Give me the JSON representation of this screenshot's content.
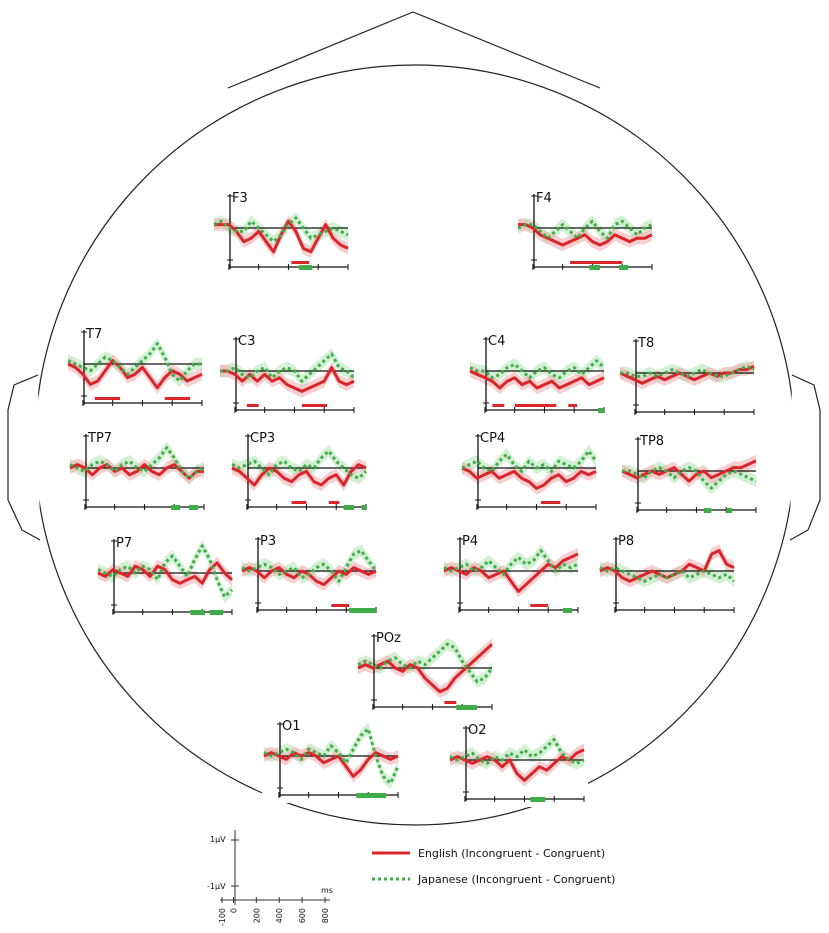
{
  "legend": {
    "english_label": "English (Incongruent - Congruent)",
    "japanese_label": "Japanese (Incongruent - Congruent)"
  },
  "scale_bar": {
    "y_top_label": "1µV",
    "y_bottom_label": "-1µV",
    "x_unit_label": "ms",
    "x_ticks": [
      "-100",
      "0",
      "200",
      "400",
      "600",
      "800"
    ]
  },
  "colors": {
    "english": "#d9262b",
    "english_band": "#f2a8ab",
    "japanese": "#3fae49",
    "japanese_band": "#aee3b2",
    "english_sig": "#d9262b",
    "japanese_sig": "#3fae49"
  },
  "chart_data": {
    "type": "line",
    "title": "",
    "xlabel": "ms",
    "ylabel": "µV",
    "xlim": [
      -100,
      800
    ],
    "ylim": [
      -1,
      1
    ],
    "x": [
      -100,
      -50,
      0,
      50,
      100,
      150,
      200,
      250,
      300,
      350,
      400,
      450,
      500,
      550,
      600,
      650,
      700,
      750,
      800
    ],
    "series_names": [
      "English (Incongruent - Congruent)",
      "Japanese (Incongruent - Congruent)"
    ],
    "electrodes": [
      {
        "name": "F3",
        "english": [
          0.1,
          0.1,
          0.1,
          -0.1,
          -0.4,
          -0.3,
          -0.1,
          -0.4,
          -0.7,
          -0.2,
          0.2,
          -0.1,
          -0.6,
          -0.7,
          -0.3,
          0.1,
          -0.3,
          -0.5,
          -0.6
        ],
        "japanese": [
          0.1,
          0.2,
          0.0,
          -0.1,
          -0.1,
          0.2,
          0.0,
          -0.2,
          -0.4,
          -0.2,
          0.1,
          0.3,
          0.0,
          -0.3,
          -0.2,
          -0.1,
          0.0,
          -0.1,
          -0.2
        ],
        "sig_english": [
          [
            420,
            540
          ]
        ],
        "sig_japanese": [
          [
            470,
            560
          ]
        ]
      },
      {
        "name": "F4",
        "english": [
          0.1,
          0.1,
          0.0,
          -0.2,
          -0.3,
          -0.4,
          -0.5,
          -0.4,
          -0.3,
          -0.2,
          -0.4,
          -0.5,
          -0.4,
          -0.2,
          -0.3,
          -0.4,
          -0.3,
          -0.3,
          -0.2
        ],
        "japanese": [
          0.0,
          0.1,
          0.1,
          -0.1,
          -0.3,
          -0.1,
          0.1,
          -0.1,
          -0.3,
          0.0,
          0.2,
          -0.1,
          -0.3,
          0.1,
          0.2,
          0.0,
          -0.2,
          0.0,
          0.1
        ],
        "sig_english": [
          [
            250,
            600
          ]
        ],
        "sig_japanese": [
          [
            380,
            450
          ],
          [
            580,
            640
          ]
        ]
      },
      {
        "name": "T7",
        "english": [
          0.0,
          -0.1,
          -0.3,
          -0.6,
          -0.5,
          -0.2,
          0.1,
          -0.1,
          -0.4,
          -0.3,
          -0.1,
          -0.4,
          -0.7,
          -0.4,
          -0.2,
          -0.3,
          -0.5,
          -0.4,
          -0.3
        ],
        "japanese": [
          0.1,
          0.0,
          -0.1,
          -0.2,
          0.0,
          0.2,
          0.1,
          -0.1,
          -0.3,
          -0.1,
          0.1,
          0.3,
          0.6,
          0.2,
          -0.3,
          -0.5,
          -0.2,
          0.0,
          0.0
        ],
        "sig_english": [
          [
            80,
            250
          ],
          [
            550,
            720
          ]
        ],
        "sig_japanese": []
      },
      {
        "name": "C3",
        "english": [
          0.0,
          0.0,
          -0.1,
          -0.3,
          -0.1,
          -0.3,
          -0.1,
          -0.3,
          -0.2,
          -0.4,
          -0.5,
          -0.6,
          -0.5,
          -0.4,
          -0.3,
          0.1,
          -0.3,
          -0.4,
          -0.3
        ],
        "japanese": [
          0.0,
          0.0,
          0.1,
          -0.1,
          -0.2,
          0.0,
          0.1,
          -0.2,
          0.0,
          0.1,
          0.0,
          -0.3,
          -0.1,
          0.1,
          0.3,
          0.5,
          0.1,
          0.0,
          -0.2
        ],
        "sig_english": [
          [
            80,
            160
          ],
          [
            450,
            620
          ]
        ],
        "sig_japanese": []
      },
      {
        "name": "C4",
        "english": [
          0.0,
          -0.1,
          -0.2,
          -0.3,
          -0.5,
          -0.3,
          -0.2,
          -0.4,
          -0.3,
          -0.5,
          -0.4,
          -0.3,
          -0.5,
          -0.4,
          -0.3,
          -0.2,
          -0.4,
          -0.3,
          -0.2
        ],
        "japanese": [
          0.1,
          0.0,
          0.0,
          -0.2,
          -0.1,
          0.1,
          0.2,
          0.0,
          -0.2,
          0.0,
          0.1,
          -0.1,
          -0.2,
          0.0,
          0.1,
          -0.1,
          0.1,
          0.3,
          0.1
        ],
        "sig_english": [
          [
            50,
            130
          ],
          [
            200,
            480
          ],
          [
            560,
            620
          ]
        ],
        "sig_japanese": [
          [
            760,
            800
          ]
        ]
      },
      {
        "name": "T8",
        "english": [
          0.0,
          -0.1,
          -0.2,
          -0.3,
          -0.2,
          -0.1,
          -0.2,
          -0.1,
          0.0,
          -0.1,
          -0.2,
          -0.1,
          0.0,
          -0.1,
          0.0,
          0.0,
          0.1,
          0.1,
          0.2
        ],
        "japanese": [
          0.0,
          0.0,
          -0.1,
          -0.1,
          0.0,
          -0.1,
          0.0,
          0.1,
          0.0,
          -0.1,
          0.0,
          0.1,
          0.0,
          -0.1,
          -0.1,
          0.0,
          0.1,
          0.2,
          0.1
        ],
        "sig_english": [],
        "sig_japanese": []
      },
      {
        "name": "TP7",
        "english": [
          0.0,
          0.1,
          0.0,
          -0.2,
          0.0,
          0.1,
          -0.1,
          0.0,
          -0.2,
          -0.1,
          0.1,
          -0.1,
          -0.2,
          0.0,
          0.1,
          -0.1,
          -0.3,
          -0.1,
          -0.1
        ],
        "japanese": [
          0.1,
          0.0,
          -0.1,
          0.1,
          0.2,
          0.1,
          -0.1,
          0.1,
          0.2,
          0.0,
          -0.1,
          0.1,
          0.3,
          0.6,
          0.3,
          -0.1,
          -0.3,
          -0.1,
          0.0
        ],
        "sig_english": [],
        "sig_japanese": [
          [
            580,
            640
          ],
          [
            700,
            760
          ]
        ]
      },
      {
        "name": "CP3",
        "english": [
          0.0,
          -0.1,
          -0.3,
          -0.5,
          -0.2,
          0.0,
          -0.1,
          -0.3,
          -0.4,
          -0.2,
          -0.1,
          -0.4,
          -0.5,
          -0.3,
          -0.2,
          -0.5,
          -0.1,
          0.1,
          0.0
        ],
        "japanese": [
          0.1,
          0.0,
          0.1,
          0.2,
          0.0,
          -0.2,
          0.1,
          0.2,
          0.0,
          -0.1,
          0.1,
          0.0,
          0.3,
          0.5,
          0.2,
          0.0,
          -0.2,
          -0.3,
          -0.1
        ],
        "sig_english": [
          [
            300,
            400
          ],
          [
            550,
            620
          ]
        ],
        "sig_japanese": [
          [
            650,
            720
          ],
          [
            770,
            800
          ]
        ]
      },
      {
        "name": "CP4",
        "english": [
          0.0,
          -0.1,
          -0.3,
          -0.2,
          -0.1,
          -0.3,
          -0.2,
          -0.1,
          -0.3,
          -0.4,
          -0.6,
          -0.5,
          -0.3,
          -0.2,
          -0.4,
          -0.3,
          -0.1,
          -0.2,
          -0.1
        ],
        "japanese": [
          0.0,
          0.1,
          0.2,
          0.0,
          -0.1,
          0.2,
          0.4,
          0.1,
          -0.1,
          0.2,
          0.0,
          0.1,
          -0.1,
          0.2,
          0.1,
          0.0,
          0.2,
          0.5,
          0.2
        ],
        "sig_english": [
          [
            430,
            560
          ]
        ],
        "sig_japanese": []
      },
      {
        "name": "TP8",
        "english": [
          0.0,
          -0.1,
          -0.2,
          -0.1,
          0.0,
          -0.1,
          0.0,
          0.1,
          -0.1,
          -0.3,
          -0.1,
          0.0,
          -0.2,
          -0.1,
          0.0,
          0.1,
          0.1,
          0.2,
          0.3
        ],
        "japanese": [
          0.0,
          0.0,
          -0.1,
          -0.2,
          0.0,
          0.1,
          0.0,
          -0.2,
          0.0,
          0.1,
          0.0,
          -0.3,
          -0.5,
          -0.3,
          -0.1,
          0.0,
          -0.1,
          -0.2,
          -0.3
        ],
        "sig_english": [],
        "sig_japanese": [
          [
            450,
            500
          ],
          [
            600,
            640
          ]
        ]
      },
      {
        "name": "P7",
        "english": [
          0.0,
          -0.1,
          0.1,
          0.0,
          -0.1,
          0.2,
          0.1,
          -0.1,
          0.2,
          0.1,
          -0.2,
          -0.3,
          -0.2,
          -0.1,
          -0.3,
          0.1,
          0.3,
          0.0,
          -0.2
        ],
        "japanese": [
          0.1,
          0.0,
          -0.1,
          0.1,
          0.2,
          0.0,
          0.2,
          0.1,
          -0.2,
          0.3,
          0.5,
          0.2,
          -0.1,
          0.4,
          0.8,
          0.4,
          -0.2,
          -0.7,
          -0.5
        ],
        "sig_english": [],
        "sig_japanese": [
          [
            520,
            620
          ],
          [
            650,
            740
          ]
        ]
      },
      {
        "name": "P3",
        "english": [
          0.0,
          0.1,
          0.0,
          -0.2,
          0.0,
          0.1,
          -0.1,
          -0.2,
          0.0,
          -0.1,
          -0.3,
          -0.4,
          -0.2,
          0.0,
          -0.1,
          0.1,
          0.0,
          -0.1,
          0.0
        ],
        "japanese": [
          0.1,
          0.0,
          0.1,
          0.2,
          0.1,
          -0.1,
          0.0,
          0.1,
          -0.2,
          -0.1,
          0.1,
          0.2,
          0.0,
          -0.3,
          0.1,
          0.5,
          0.6,
          0.3,
          0.0
        ],
        "sig_english": [
          [
            500,
            620
          ]
        ],
        "sig_japanese": [
          [
            620,
            800
          ]
        ]
      },
      {
        "name": "P4",
        "english": [
          0.0,
          0.1,
          0.0,
          -0.1,
          0.1,
          0.0,
          -0.2,
          -0.1,
          0.0,
          -0.3,
          -0.6,
          -0.4,
          -0.2,
          0.0,
          0.2,
          0.1,
          0.3,
          0.4,
          0.5
        ],
        "japanese": [
          0.1,
          0.0,
          0.1,
          0.2,
          0.0,
          0.1,
          0.3,
          0.1,
          -0.1,
          0.2,
          0.4,
          0.2,
          0.3,
          0.6,
          0.3,
          0.0,
          0.2,
          0.1,
          0.2
        ],
        "sig_english": [
          [
            480,
            600
          ]
        ],
        "sig_japanese": [
          [
            700,
            760
          ]
        ]
      },
      {
        "name": "P8",
        "english": [
          0.0,
          0.1,
          0.0,
          -0.2,
          -0.3,
          -0.2,
          -0.1,
          0.0,
          -0.1,
          -0.2,
          -0.1,
          0.0,
          0.2,
          0.1,
          0.0,
          0.5,
          0.6,
          0.2,
          0.1
        ],
        "japanese": [
          0.1,
          0.0,
          0.1,
          0.0,
          -0.1,
          -0.2,
          -0.3,
          -0.2,
          -0.1,
          -0.2,
          -0.1,
          0.0,
          -0.2,
          -0.1,
          0.0,
          -0.1,
          -0.2,
          -0.1,
          -0.3
        ],
        "sig_english": [],
        "sig_japanese": []
      },
      {
        "name": "POz",
        "english": [
          0.0,
          0.1,
          0.0,
          0.1,
          0.2,
          0.0,
          -0.1,
          0.1,
          0.0,
          -0.3,
          -0.5,
          -0.7,
          -0.6,
          -0.3,
          -0.1,
          0.1,
          0.3,
          0.5,
          0.7
        ],
        "japanese": [
          0.1,
          0.2,
          0.1,
          0.0,
          0.2,
          0.3,
          0.1,
          0.0,
          0.2,
          0.1,
          0.3,
          0.5,
          0.7,
          0.6,
          0.2,
          -0.1,
          -0.4,
          -0.3,
          0.0
        ],
        "sig_english": [
          [
            480,
            560
          ]
        ],
        "sig_japanese": [
          [
            560,
            700
          ]
        ]
      },
      {
        "name": "O1",
        "english": [
          0.0,
          0.1,
          0.0,
          -0.1,
          0.1,
          0.0,
          0.1,
          0.0,
          -0.2,
          -0.1,
          0.0,
          -0.3,
          -0.6,
          -0.4,
          -0.1,
          0.1,
          0.0,
          -0.1,
          0.0
        ],
        "japanese": [
          0.1,
          0.0,
          0.1,
          0.2,
          0.1,
          -0.1,
          0.2,
          0.1,
          0.0,
          0.3,
          0.1,
          -0.2,
          0.2,
          0.6,
          0.8,
          0.0,
          -0.6,
          -0.8,
          -0.3
        ],
        "sig_english": [],
        "sig_japanese": [
          [
            520,
            720
          ]
        ]
      },
      {
        "name": "O2",
        "english": [
          0.0,
          0.1,
          0.0,
          -0.1,
          0.0,
          0.1,
          0.0,
          -0.2,
          0.0,
          -0.4,
          -0.6,
          -0.4,
          -0.2,
          -0.3,
          -0.1,
          0.1,
          0.0,
          0.2,
          0.3
        ],
        "japanese": [
          0.1,
          0.0,
          0.1,
          0.2,
          0.0,
          -0.1,
          0.1,
          0.0,
          0.2,
          0.1,
          0.3,
          0.1,
          0.2,
          0.4,
          0.6,
          0.2,
          0.0,
          -0.1,
          0.0
        ],
        "sig_english": [],
        "sig_japanese": [
          [
            440,
            540
          ]
        ]
      }
    ]
  }
}
